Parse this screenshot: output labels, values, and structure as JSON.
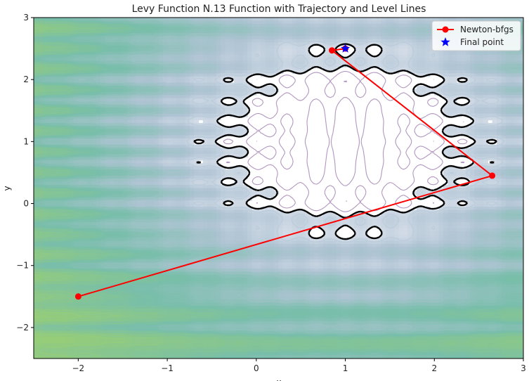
{
  "chart_data": {
    "type": "line",
    "title": "Levy Function N.13 Function with Trajectory and Level Lines",
    "xlabel": "x",
    "ylabel": "y",
    "xlim": [
      -2.5,
      3
    ],
    "ylim": [
      -2.5,
      3
    ],
    "xticks": [
      -2,
      -1,
      0,
      1,
      2,
      3
    ],
    "yticks": [
      -2,
      -1,
      0,
      1,
      2,
      3
    ],
    "xtick_labels": [
      "−2",
      "−1",
      "0",
      "1",
      "2",
      "3"
    ],
    "ytick_labels": [
      "−2",
      "−1",
      "0",
      "1",
      "2",
      "3"
    ],
    "grid": false,
    "legend_position": "top-right",
    "background": "contour plot of Levy Function N.13 with level lines",
    "series": [
      {
        "name": "Newton-bfgs",
        "color": "#ff0000",
        "marker": "circle",
        "x": [
          -2.0,
          2.65,
          0.85,
          1.0
        ],
        "y": [
          -1.5,
          0.45,
          2.47,
          2.5
        ]
      }
    ],
    "final_point": {
      "name": "Final point",
      "color": "#0000ff",
      "marker": "star",
      "x": 1.0,
      "y": 2.5
    }
  }
}
